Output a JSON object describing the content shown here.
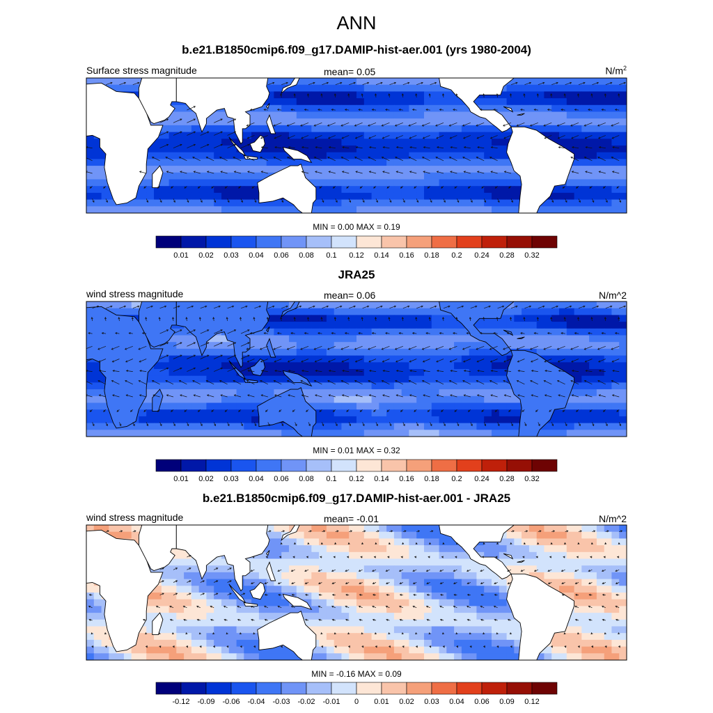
{
  "figure": {
    "title": "ANN"
  },
  "chart_data": [
    {
      "type": "heatmap",
      "title": "b.e21.B1850cmip6.f09_g17.DAMIP-hist-aer.001 (yrs 1980-2004)",
      "left_label": "Surface stress magnitude",
      "mean_label": "mean=   0.05",
      "units": "N/m",
      "units_sup": "2",
      "min_max": "MIN =   0.00 MAX =   0.19",
      "colorbar_labels": [
        "0.01",
        "0.02",
        "0.03",
        "0.04",
        "0.06",
        "0.08",
        "0.1",
        "0.12",
        "0.14",
        "0.16",
        "0.18",
        "0.2",
        "0.24",
        "0.28",
        "0.32"
      ],
      "field_mean": 0.05
    },
    {
      "type": "heatmap",
      "title": "JRA25",
      "left_label": "wind stress magnitude",
      "mean_label": "mean=   0.06",
      "units": "N/m^2",
      "units_sup": "",
      "min_max": "MIN =   0.01 MAX =   0.32",
      "colorbar_labels": [
        "0.01",
        "0.02",
        "0.03",
        "0.04",
        "0.06",
        "0.08",
        "0.1",
        "0.12",
        "0.14",
        "0.16",
        "0.18",
        "0.2",
        "0.24",
        "0.28",
        "0.32"
      ],
      "field_mean": 0.06
    },
    {
      "type": "heatmap",
      "title": "b.e21.B1850cmip6.f09_g17.DAMIP-hist-aer.001 - JRA25",
      "left_label": "wind stress magnitude",
      "mean_label": "mean=  -0.01",
      "units": "N/m^2",
      "units_sup": "",
      "min_max": "MIN =  -0.16 MAX =   0.09",
      "colorbar_labels": [
        "-0.12",
        "-0.09",
        "-0.06",
        "-0.04",
        "-0.03",
        "-0.02",
        "-0.01",
        "0",
        "0.01",
        "0.02",
        "0.03",
        "0.04",
        "0.06",
        "0.09",
        "0.12"
      ],
      "field_mean": -0.01
    }
  ],
  "colors": {
    "palette": [
      "#00007a",
      "#0018a8",
      "#0034d6",
      "#1a55ef",
      "#3f76f5",
      "#7094f7",
      "#a6bff9",
      "#d2e3fc",
      "#fde6d6",
      "#f9c4aa",
      "#f5a07a",
      "#ef6e45",
      "#e2401c",
      "#bf200a",
      "#960f05",
      "#6e0303"
    ],
    "land": "#ffffff",
    "coast": "#000000"
  }
}
